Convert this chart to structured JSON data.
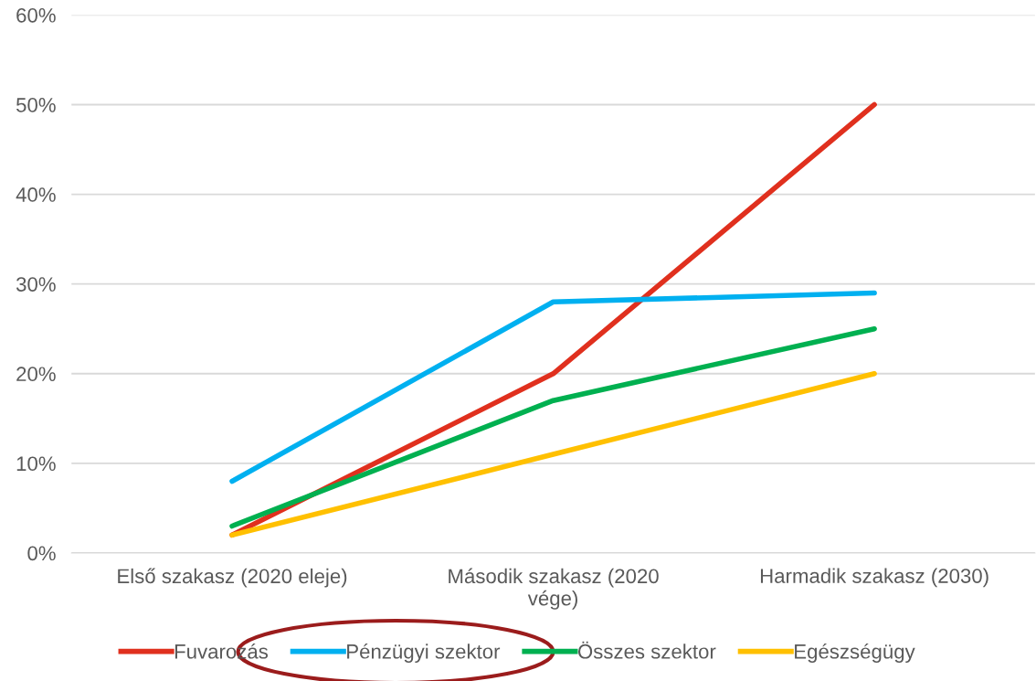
{
  "chart_data": {
    "type": "line",
    "categories": [
      "Első szakasz (2020 eleje)",
      "Második szakasz (2020\nvége)",
      "Harmadik szakasz (2030)"
    ],
    "series": [
      {
        "name": "Fuvarozás",
        "color": "#e0301e",
        "values": [
          2,
          20,
          50
        ]
      },
      {
        "name": "Pénzügyi szektor",
        "color": "#00b0f0",
        "values": [
          8,
          28,
          29
        ]
      },
      {
        "name": "Összes szektor",
        "color": "#00b050",
        "values": [
          3,
          17,
          25
        ]
      },
      {
        "name": "Egészségügy",
        "color": "#ffc000",
        "values": [
          2,
          11,
          20
        ]
      }
    ],
    "ylim": [
      0,
      60
    ],
    "yticks": [
      {
        "value": 0,
        "label": "0%"
      },
      {
        "value": 10,
        "label": "10%"
      },
      {
        "value": 20,
        "label": "20%"
      },
      {
        "value": 30,
        "label": "30%"
      },
      {
        "value": 40,
        "label": "40%"
      },
      {
        "value": 50,
        "label": "50%"
      },
      {
        "value": 60,
        "label": "60%"
      }
    ],
    "grid": "y",
    "legend": "bottom",
    "marker": "none",
    "line_style": "solid"
  }
}
